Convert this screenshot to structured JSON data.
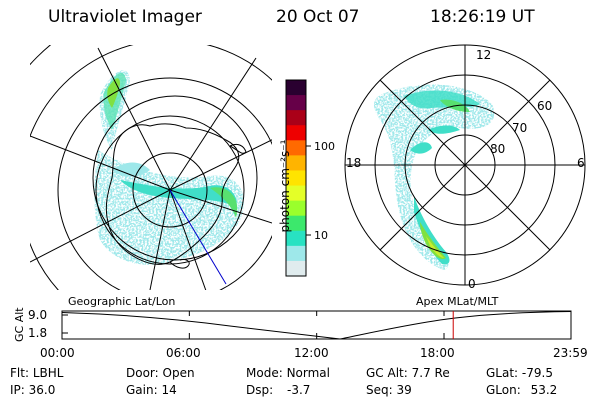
{
  "header": {
    "instrument": "Ultraviolet Imager",
    "date": "20 Oct 07",
    "time": "18:26:19 UT"
  },
  "left_panel": {
    "label": "Geographic Lat/Lon"
  },
  "right_panel": {
    "label": "Apex  MLat/MLT",
    "mlt_labels": {
      "top": "12",
      "right": "6",
      "bottom": "0",
      "left": "18"
    },
    "lat_labels": [
      "60",
      "70",
      "80"
    ]
  },
  "colorbar": {
    "unit": "photon cm⁻²s⁻¹",
    "ticks": [
      "100",
      "10"
    ],
    "colors": [
      "#2a0030",
      "#660048",
      "#aa0018",
      "#ee0000",
      "#ff6a00",
      "#ffb400",
      "#ffe400",
      "#e4ff28",
      "#9aff2c",
      "#3ce86c",
      "#28e2c2",
      "#9ee8ea",
      "#e0ecee"
    ]
  },
  "altitude_track": {
    "axis_label": "GC Alt",
    "y_ticks": [
      "9.0",
      "1.8"
    ],
    "x_ticks": [
      "00:00",
      "06:00",
      "12:00",
      "18:00",
      "23:59"
    ],
    "current_time": "18:26",
    "marker_color": "#cc0000"
  },
  "info": {
    "filter_label": "Flt:",
    "filter_value": "LBHL",
    "ip_label": "IP:",
    "ip_value": "36.0",
    "door_label": "Door:",
    "door_value": "Open",
    "gain_label": "Gain:",
    "gain_value": "14",
    "mode_label": "Mode:",
    "mode_value": "Normal",
    "dsp_label": "Dsp:",
    "dsp_value": "-3.7",
    "gcalt_label": "GC Alt:",
    "gcalt_value": "7.7 Re",
    "seq_label": "Seq:",
    "seq_value": "39",
    "glat_label": "GLat:",
    "glat_value": "-79.5",
    "glon_label": "GLon:",
    "glon_value": "53.2"
  }
}
